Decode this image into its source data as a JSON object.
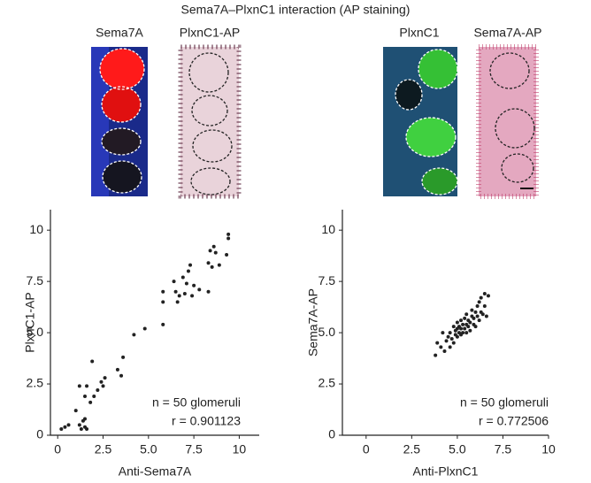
{
  "figure_title": "Sema7A–PlxnC1 interaction (AP staining)",
  "image_labels": [
    {
      "text": "Sema7A",
      "color": "#e8231e"
    },
    {
      "text": "PlxnC1-AP",
      "color": "#111111"
    },
    {
      "text": "PlxnC1",
      "color": "#3cb034"
    },
    {
      "text": "Sema7A-AP",
      "color": "#111111"
    }
  ],
  "chart_data": [
    {
      "type": "scatter",
      "x_label": "Anti-Sema7A",
      "y_label": "PlxnC1-AP",
      "color": "#222222",
      "annotations": [
        "n = 50 glomeruli",
        "r = 0.901123"
      ],
      "xlim": [
        -0.4,
        11.1
      ],
      "ylim": [
        0,
        11
      ],
      "xticks": [
        0,
        2.5,
        {
          "value": 5,
          "label": "5.0"
        },
        7.5,
        10
      ],
      "yticks": [
        0,
        2.5,
        {
          "value": 5,
          "label": "5.0"
        },
        7.5,
        10
      ],
      "x": [
        0.2,
        0.4,
        0.6,
        1.0,
        1.2,
        1.3,
        1.4,
        1.5,
        1.5,
        1.6,
        1.2,
        1.5,
        1.6,
        1.9,
        1.8,
        2.0,
        2.2,
        2.4,
        2.5,
        2.6,
        3.3,
        3.5,
        3.6,
        4.2,
        4.8,
        5.8,
        5.8,
        5.8,
        6.4,
        6.5,
        6.6,
        6.7,
        6.9,
        7.0,
        7.1,
        7.2,
        7.3,
        7.4,
        7.5,
        7.8,
        8.3,
        8.3,
        8.4,
        8.5,
        8.6,
        8.7,
        8.9,
        9.3,
        9.4,
        9.4
      ],
      "values": [
        0.3,
        0.4,
        0.5,
        1.2,
        0.5,
        0.3,
        0.7,
        0.4,
        0.8,
        0.3,
        2.4,
        1.9,
        2.4,
        3.6,
        1.6,
        1.9,
        2.2,
        2.6,
        2.4,
        2.8,
        3.2,
        2.9,
        3.8,
        4.9,
        5.2,
        5.4,
        6.5,
        7.0,
        7.5,
        7.0,
        6.5,
        6.8,
        7.7,
        6.9,
        7.4,
        8.0,
        8.3,
        6.8,
        7.3,
        7.1,
        7.0,
        8.4,
        9.0,
        8.2,
        9.2,
        8.9,
        8.3,
        8.8,
        9.6,
        9.8
      ]
    },
    {
      "type": "scatter",
      "x_label": "Anti-PlxnC1",
      "y_label": "Sema7A-AP",
      "color": "#222222",
      "annotations": [
        "n = 50 glomeruli",
        "r = 0.772506"
      ],
      "xlim": [
        -1.3,
        10
      ],
      "ylim": [
        0,
        11
      ],
      "xticks": [
        0,
        2.5,
        {
          "value": 5,
          "label": "5.0"
        },
        7.5,
        10
      ],
      "yticks": [
        0,
        2.5,
        {
          "value": 5,
          "label": "5.0"
        },
        7.5,
        10
      ],
      "x": [
        3.8,
        3.9,
        4.1,
        4.2,
        4.3,
        4.4,
        4.5,
        4.6,
        4.6,
        4.7,
        4.8,
        4.8,
        4.9,
        4.9,
        5.0,
        5.0,
        5.0,
        5.1,
        5.1,
        5.2,
        5.2,
        5.2,
        5.3,
        5.3,
        5.4,
        5.4,
        5.5,
        5.5,
        5.5,
        5.6,
        5.6,
        5.7,
        5.7,
        5.8,
        5.8,
        5.9,
        5.9,
        6.0,
        6.0,
        6.1,
        6.1,
        6.2,
        6.2,
        6.3,
        6.3,
        6.4,
        6.5,
        6.5,
        6.6,
        6.7
      ],
      "values": [
        3.9,
        4.5,
        4.3,
        5.0,
        4.1,
        4.6,
        4.8,
        4.3,
        5.0,
        4.7,
        4.5,
        5.3,
        4.9,
        5.1,
        4.8,
        5.2,
        5.5,
        5.0,
        5.3,
        4.9,
        5.2,
        5.6,
        5.0,
        5.4,
        5.2,
        5.7,
        5.0,
        5.4,
        5.9,
        5.3,
        5.6,
        5.1,
        5.5,
        5.8,
        6.1,
        5.4,
        5.7,
        5.3,
        6.0,
        5.8,
        6.3,
        5.6,
        6.5,
        6.0,
        6.7,
        5.9,
        6.3,
        6.9,
        5.8,
        6.8
      ]
    }
  ]
}
